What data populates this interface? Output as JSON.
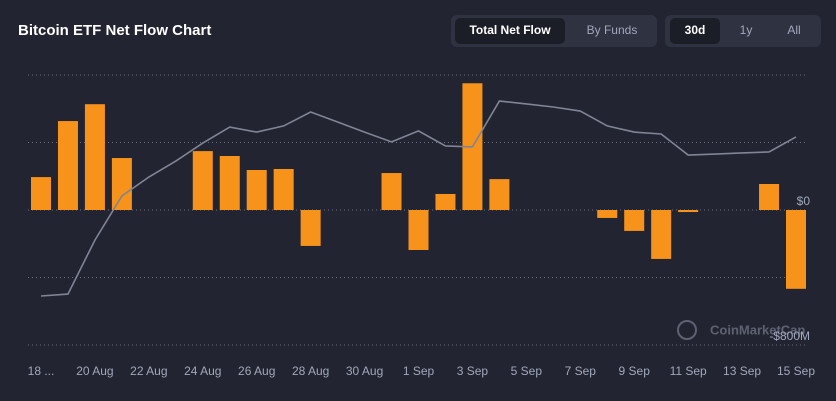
{
  "chart_data": {
    "type": "bar",
    "title": "Bitcoin ETF Net Flow Chart",
    "watermark": "CoinMarketCap",
    "categories": [
      "18 ...",
      null,
      "20 Aug",
      null,
      "22 Aug",
      null,
      "24 Aug",
      null,
      "26 Aug",
      null,
      "28 Aug",
      null,
      "30 Aug",
      null,
      "1 Sep",
      null,
      "3 Sep",
      null,
      "5 Sep",
      null,
      "7 Sep",
      null,
      "9 Sep",
      null,
      "11 Sep",
      null,
      "13 Sep",
      null,
      "15 Sep"
    ],
    "series": [
      {
        "type": "bar",
        "color": "#f7931a",
        "values": [
          195,
          527,
          627,
          308,
          null,
          null,
          349,
          320,
          237,
          243,
          -213,
          null,
          null,
          219,
          -237,
          95,
          751,
          183,
          null,
          null,
          null,
          -47,
          -124,
          -290,
          -12,
          null,
          null,
          154,
          -467
        ]
      },
      {
        "type": "line",
        "color": "#7f8496",
        "axis": "y2",
        "values": [
          54540,
          54640,
          57440,
          59730,
          60710,
          61540,
          62470,
          63300,
          63040,
          63360,
          64080,
          63560,
          63040,
          62530,
          63100,
          62320,
          62270,
          64650,
          64500,
          64340,
          64130,
          63360,
          63040,
          62940,
          61850,
          61900,
          61960,
          62010,
          62790
        ]
      }
    ],
    "ylim": [
      -800,
      800
    ],
    "yticks": [
      {
        "value": 0,
        "label": "$0"
      },
      {
        "value": -800,
        "label": "-$800M"
      }
    ],
    "grid_lines": [
      -800,
      -400,
      0,
      400,
      800
    ],
    "y2lim": [
      52000,
      66000
    ],
    "grid": true
  },
  "controls": {
    "view_tabs": [
      "Total Net Flow",
      "By Funds"
    ],
    "view_active": 0,
    "range_tabs": [
      "30d",
      "1y",
      "All"
    ],
    "range_active": 0
  }
}
